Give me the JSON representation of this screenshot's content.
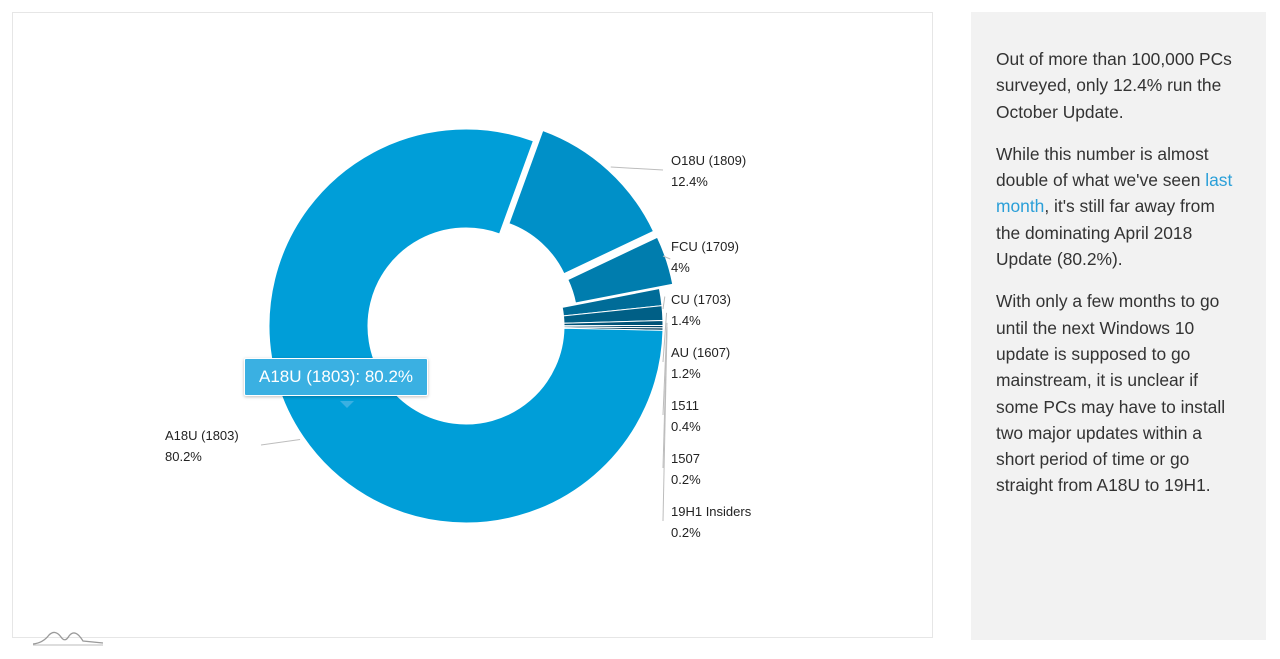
{
  "chart_data": {
    "type": "pie",
    "variant": "donut",
    "categories": [
      "O18U (1809)",
      "FCU (1709)",
      "CU (1703)",
      "AU (1607)",
      "1511",
      "1507",
      "19H1 Insiders",
      "A18U (1803)"
    ],
    "values": [
      12.4,
      4,
      1.4,
      1.2,
      0.4,
      0.2,
      0.2,
      80.2
    ],
    "value_labels": [
      "12.4%",
      "4%",
      "1.4%",
      "1.2%",
      "0.4%",
      "0.2%",
      "0.2%",
      "80.2%"
    ],
    "exploded": [
      "O18U (1809)",
      "FCU (1709)"
    ],
    "colors": [
      "#0090c8",
      "#007dae",
      "#006c98",
      "#005f86",
      "#005277",
      "#00476a",
      "#003c5c",
      "#009ed8"
    ],
    "tooltip": "A18U (1803): 80.2%"
  },
  "side_panel": {
    "p1": "Out of more than 100,000 PCs surveyed, only 12.4% run the October Update.",
    "p2_before": "While this number is almost double of what we've seen ",
    "p2_link": "last month",
    "p2_after": ", it's still far away from the dominating April 2018 Update (80.2%).",
    "p3": "With only a few months to go until the next Windows 10 update is supposed to go mainstream, it is unclear if some PCs may have to install two major updates within a short period of time or go straight from A18U to 19H1."
  }
}
